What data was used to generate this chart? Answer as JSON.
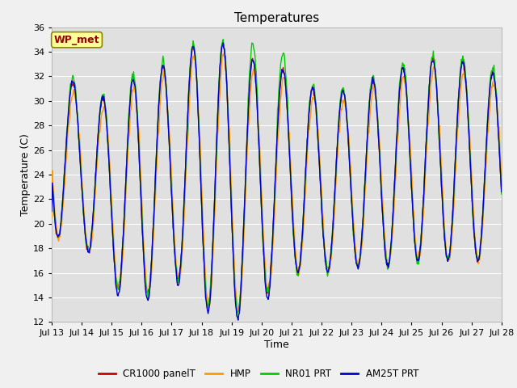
{
  "title": "Temperatures",
  "xlabel": "Time",
  "ylabel": "Temperature (C)",
  "ylim": [
    12,
    36
  ],
  "xlim": [
    0,
    360
  ],
  "x_tick_labels": [
    "Jul 13",
    "Jul 14",
    "Jul 15",
    "Jul 16",
    "Jul 17",
    "Jul 18",
    "Jul 19",
    "Jul 20",
    "Jul 21",
    "Jul 22",
    "Jul 23",
    "Jul 24",
    "Jul 25",
    "Jul 26",
    "Jul 27",
    "Jul 28"
  ],
  "x_tick_positions": [
    0,
    24,
    48,
    72,
    96,
    120,
    144,
    168,
    192,
    216,
    240,
    264,
    288,
    312,
    336,
    360
  ],
  "legend_entries": [
    "CR1000 panelT",
    "HMP",
    "NR01 PRT",
    "AM25T PRT"
  ],
  "line_colors": [
    "#cc0000",
    "#ff9900",
    "#00cc00",
    "#0000cc"
  ],
  "wp_met_label": "WP_met",
  "wp_met_fg": "#990000",
  "wp_met_bg": "#ffff99",
  "fig_bg_color": "#f0f0f0",
  "plot_bg_color": "#e0e0e0",
  "grid_color": "#ffffff",
  "title_fontsize": 11,
  "axis_fontsize": 9,
  "tick_fontsize": 8,
  "legend_fontsize": 8.5,
  "day_mins": [
    19.0,
    18.5,
    15.0,
    13.8,
    16.0,
    13.5,
    12.5,
    14.0,
    16.0,
    16.0,
    16.5,
    16.5,
    17.0,
    17.0,
    17.0,
    17.0
  ],
  "day_maxs": [
    33.0,
    31.0,
    30.0,
    32.5,
    33.0,
    35.0,
    34.5,
    33.0,
    32.5,
    30.5,
    31.0,
    32.0,
    33.0,
    33.5,
    33.0,
    32.0
  ],
  "n_points": 720,
  "n_days": 15
}
